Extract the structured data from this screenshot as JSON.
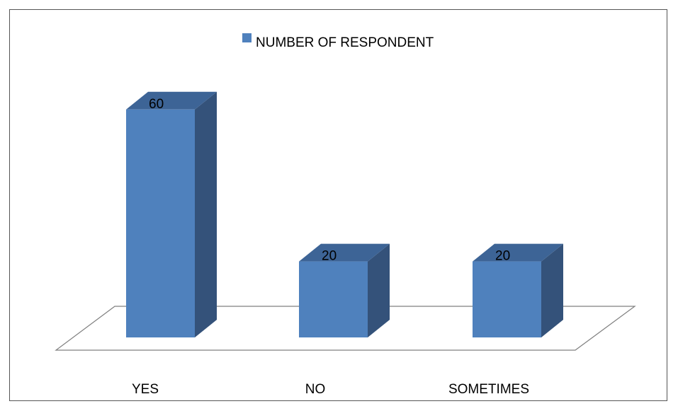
{
  "chart_data": {
    "type": "bar",
    "categories": [
      "YES",
      "NO",
      "SOMETIMES"
    ],
    "series": [
      {
        "name": "NUMBER OF RESPONDENT",
        "values": [
          60,
          20,
          20
        ]
      }
    ],
    "data_labels": [
      "60",
      "20",
      "20"
    ],
    "ylim": [
      0,
      60
    ],
    "grid": false,
    "legend_position": "top",
    "style_3d": true,
    "colors": {
      "bar_front": "#4F81BD",
      "bar_side": "#34527A",
      "bar_top": "#3D6496",
      "floor_stroke": "#7F7F7F",
      "text": "#000000"
    }
  }
}
